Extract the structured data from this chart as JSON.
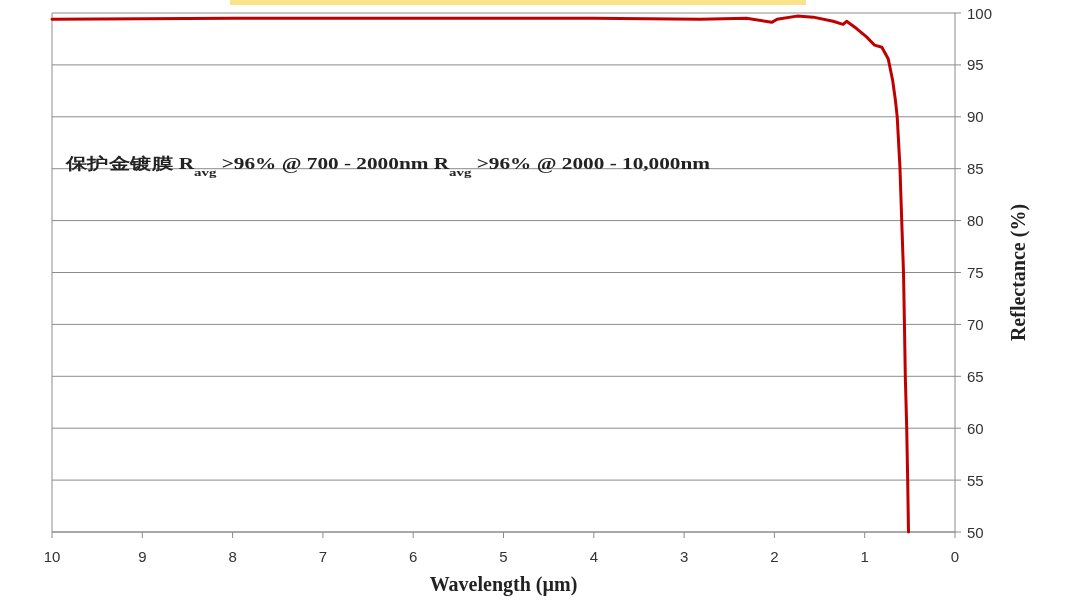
{
  "chart_data": {
    "type": "line",
    "xlabel": "Wavelength (µm)",
    "ylabel": "Reflectance (%)",
    "annotations": [
      "保护金镀膜 R$_{avg}$ >96% @ 700 - 2000nm R$_{avg}$ >96% @ 2000 - 10,000nm"
    ],
    "x": [
      10,
      8,
      6,
      4,
      2.82,
      2.31,
      2.03,
      1.97,
      1.75,
      1.57,
      1.35,
      1.24,
      1.2,
      1.09,
      0.98,
      0.89,
      0.81,
      0.74,
      0.69,
      0.66,
      0.64,
      0.61,
      0.59,
      0.57,
      0.56,
      0.55,
      0.535,
      0.524,
      0.515
    ],
    "values": [
      99.4,
      99.5,
      99.5,
      99.5,
      99.4,
      99.5,
      99.1,
      99.4,
      99.7,
      99.6,
      99.2,
      98.9,
      99.2,
      98.5,
      97.7,
      96.9,
      96.7,
      95.6,
      93.5,
      91.6,
      90.0,
      85.2,
      80.0,
      74.9,
      70.1,
      64.9,
      60.1,
      55.0,
      50.0
    ],
    "color": "#c00000",
    "line_style": "solid",
    "xlim": [
      10,
      0
    ],
    "xticks": [
      10,
      9,
      8,
      7,
      6,
      5,
      4,
      3,
      2,
      1,
      0
    ],
    "ylim": [
      50,
      100
    ],
    "yticks": [
      50,
      55,
      60,
      65,
      70,
      75,
      80,
      85,
      90,
      95,
      100
    ],
    "grid": "y"
  }
}
